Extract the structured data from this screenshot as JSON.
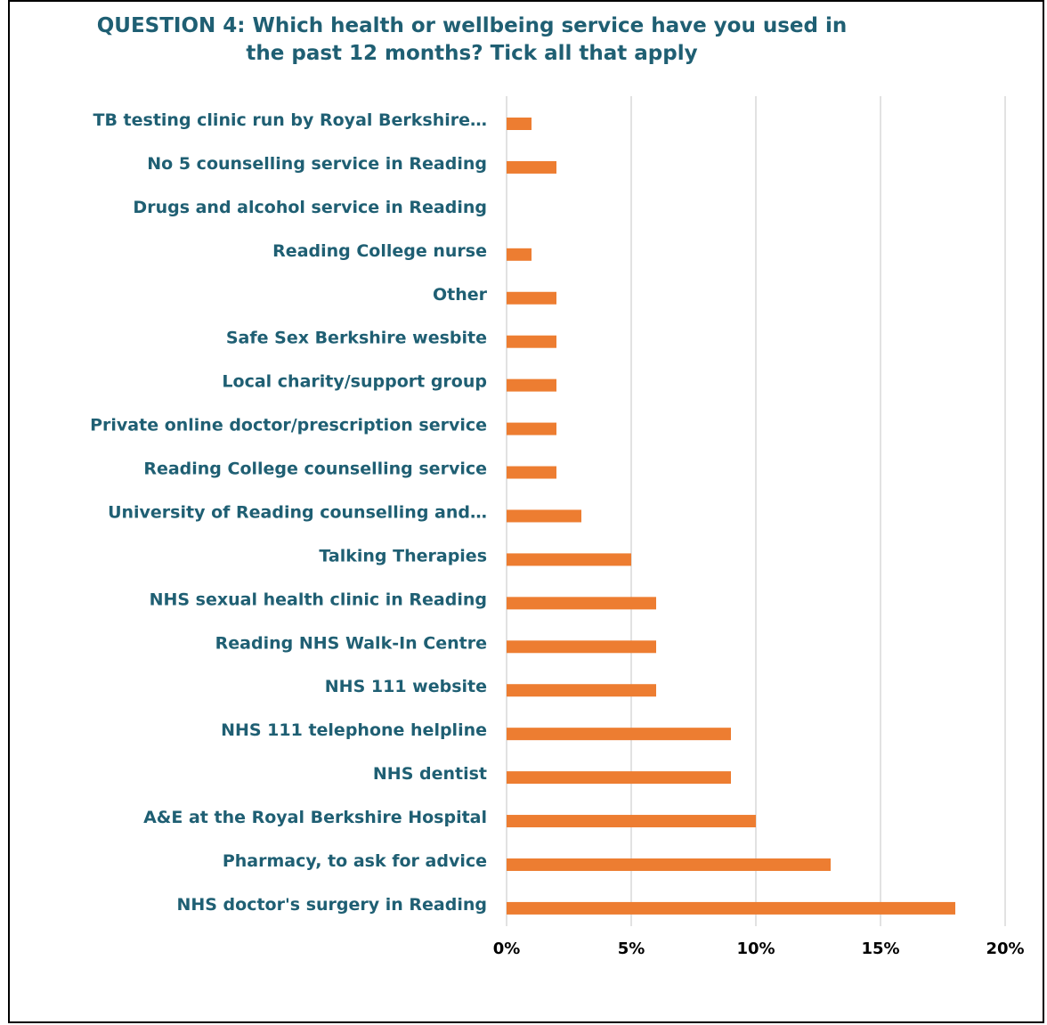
{
  "chart_data": {
    "type": "bar",
    "orientation": "horizontal",
    "title": "QUESTION 4: Which health or wellbeing service have you used in the past 12 months? Tick all that apply",
    "title_lines": [
      "QUESTION 4: Which health or wellbeing service have you used in",
      "the past 12 months? Tick all that apply"
    ],
    "categories": [
      "TB testing clinic run by Royal Berkshire…",
      "No 5 counselling service in Reading",
      "Drugs and alcohol service in Reading",
      "Reading College nurse",
      "Other",
      "Safe Sex Berkshire wesbite",
      "Local charity/support group",
      "Private online doctor/prescription service",
      "Reading College counselling service",
      "University of Reading counselling and…",
      "Talking Therapies",
      "NHS sexual health clinic in Reading",
      "Reading NHS Walk-In Centre",
      "NHS 111 website",
      "NHS 111 telephone helpline",
      "NHS dentist",
      "A&E at the Royal Berkshire Hospital",
      "Pharmacy, to ask for advice",
      "NHS doctor's surgery in Reading"
    ],
    "values": [
      1,
      2,
      0,
      1,
      2,
      2,
      2,
      2,
      2,
      3,
      5,
      6,
      6,
      6,
      9,
      9,
      10,
      13,
      18
    ],
    "xlim": [
      0,
      20
    ],
    "xticks": [
      0,
      5,
      10,
      15,
      20
    ],
    "xtick_labels": [
      "0%",
      "5%",
      "10%",
      "15%",
      "20%"
    ],
    "grid": "vertical",
    "legend": "none",
    "colors": {
      "bar": "#ed7d31",
      "label": "#1f5f73",
      "grid": "#d9d9d9",
      "tick": "#000000"
    }
  }
}
